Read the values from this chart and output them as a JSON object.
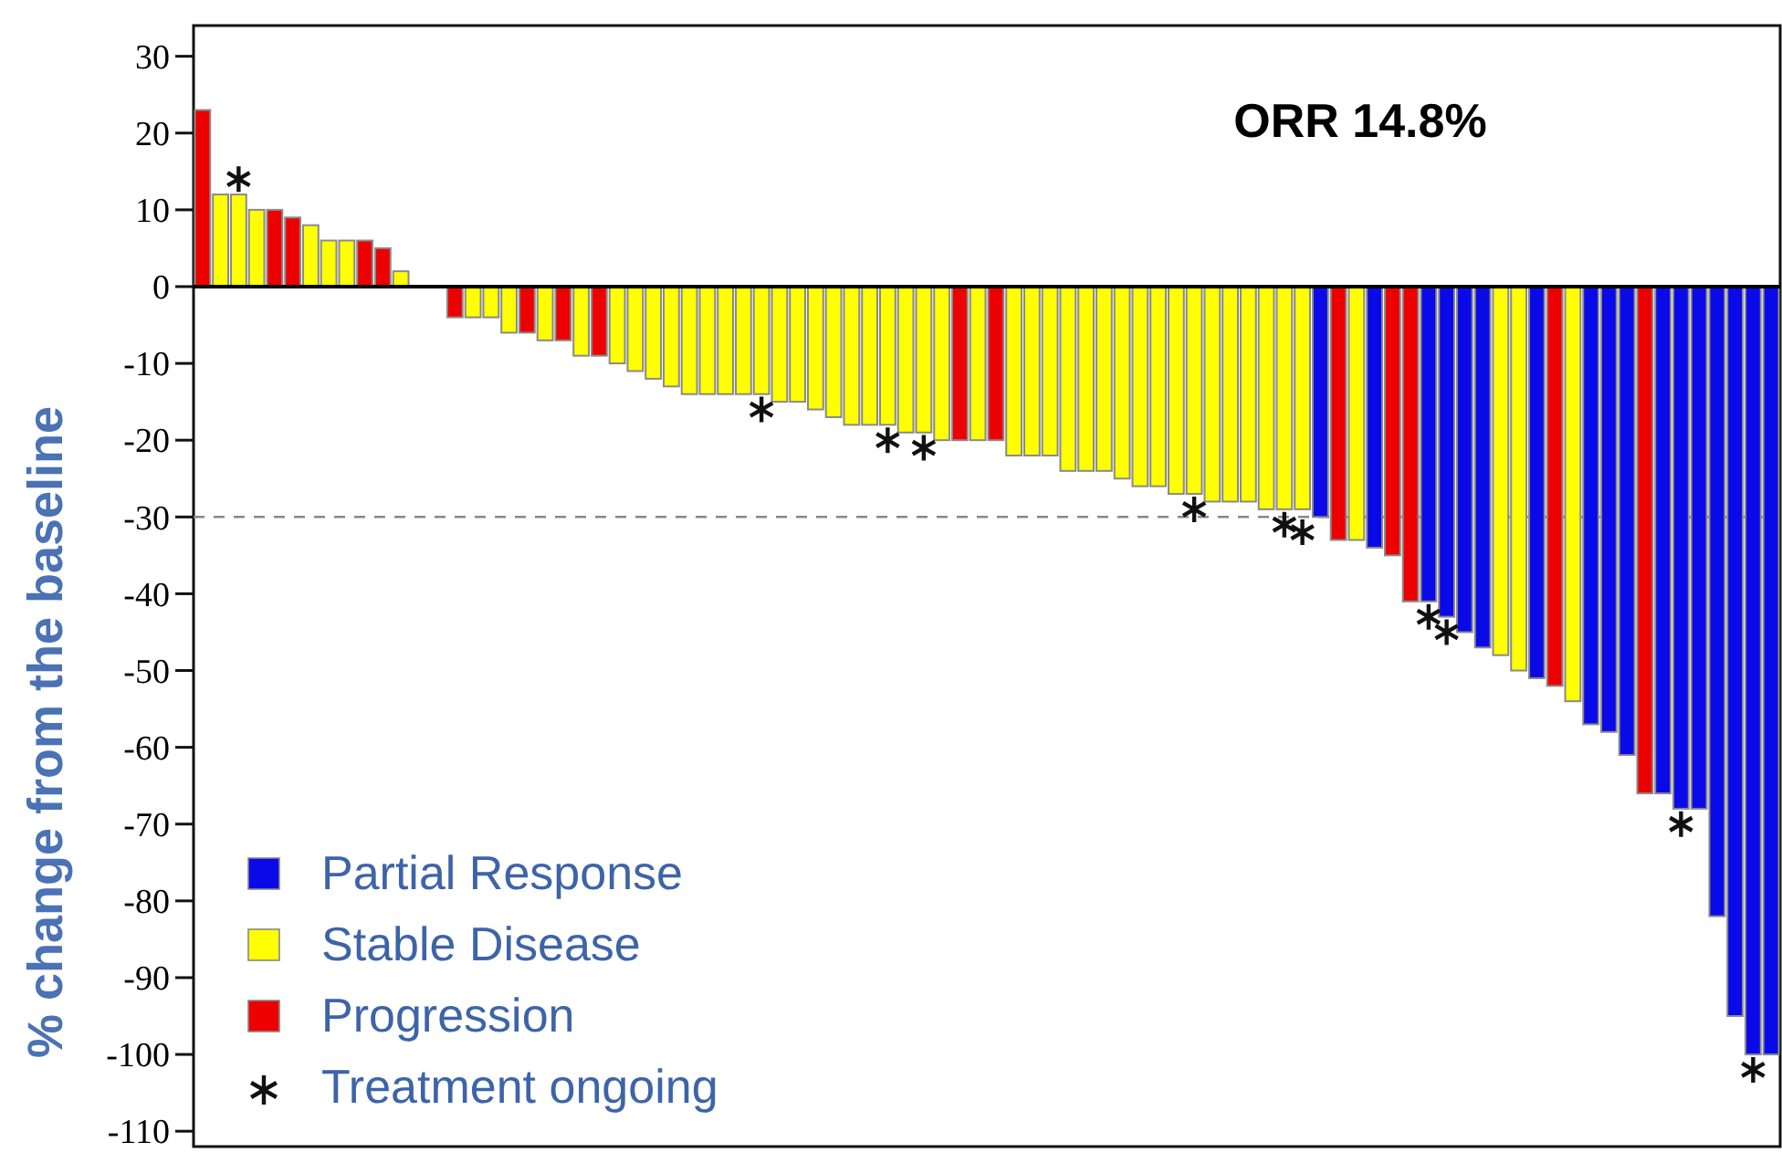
{
  "chart_data": {
    "type": "bar",
    "stacked": true,
    "ylabel": "% change from the baseline",
    "annotations": [
      "ORR 14.8%"
    ],
    "categories": [
      null,
      null,
      null,
      null,
      null,
      null,
      null,
      null,
      null,
      null,
      null,
      null,
      null,
      null,
      null,
      null,
      null,
      null,
      null,
      null,
      null,
      null,
      null,
      null,
      null,
      null,
      null,
      null,
      null,
      null,
      null,
      null,
      null,
      null,
      null,
      null,
      null,
      null,
      null,
      null,
      null,
      null,
      null,
      null,
      null,
      null,
      null,
      null,
      null,
      null,
      null,
      null,
      null,
      null,
      null,
      null,
      null,
      null,
      null,
      null,
      null,
      null,
      null,
      null,
      null,
      null,
      null,
      null,
      null,
      null,
      null,
      null,
      null,
      null,
      null,
      null,
      null,
      null,
      null,
      null,
      null,
      null,
      null,
      null,
      null,
      null,
      null,
      null
    ],
    "series": [
      {
        "name": "Partial Response",
        "color": "#0a0ae8",
        "values": [
          null,
          null,
          null,
          null,
          null,
          null,
          null,
          null,
          null,
          null,
          null,
          null,
          null,
          null,
          null,
          null,
          null,
          null,
          null,
          null,
          null,
          null,
          null,
          null,
          null,
          null,
          null,
          null,
          null,
          null,
          null,
          null,
          null,
          null,
          null,
          null,
          null,
          null,
          null,
          null,
          null,
          null,
          null,
          null,
          null,
          null,
          null,
          null,
          null,
          null,
          null,
          null,
          null,
          null,
          null,
          null,
          null,
          null,
          null,
          null,
          null,
          null,
          -30,
          null,
          null,
          -34,
          null,
          null,
          -41,
          -43,
          -45,
          -47,
          null,
          null,
          -51,
          null,
          null,
          -57,
          -58,
          -61,
          null,
          -66,
          -68,
          -68,
          -82,
          -95,
          -100,
          -100
        ]
      },
      {
        "name": "Stable Disease",
        "color": "#ffff00",
        "values": [
          null,
          12,
          12,
          10,
          null,
          null,
          8,
          6,
          6,
          null,
          null,
          2,
          null,
          null,
          null,
          -4,
          -4,
          -6,
          null,
          -7,
          null,
          -9,
          null,
          -10,
          -11,
          -12,
          -13,
          -14,
          -14,
          -14,
          -14,
          -14,
          -15,
          -15,
          -16,
          -17,
          -18,
          -18,
          -18,
          -19,
          -19,
          -20,
          null,
          -20,
          null,
          -22,
          -22,
          -22,
          -24,
          -24,
          -24,
          -25,
          -26,
          -26,
          -27,
          -27,
          -28,
          -28,
          -28,
          -29,
          -29,
          -29,
          null,
          null,
          -33,
          null,
          null,
          null,
          null,
          null,
          null,
          null,
          -48,
          -50,
          null,
          null,
          -54,
          null,
          null,
          null,
          null,
          null,
          null,
          null,
          null,
          null,
          null,
          null
        ]
      },
      {
        "name": "Progression",
        "color": "#ee0000",
        "values": [
          23,
          null,
          null,
          null,
          10,
          9,
          null,
          null,
          null,
          6,
          5,
          null,
          null,
          null,
          -4,
          null,
          null,
          null,
          -6,
          null,
          -7,
          null,
          -9,
          null,
          null,
          null,
          null,
          null,
          null,
          null,
          null,
          null,
          null,
          null,
          null,
          null,
          null,
          null,
          null,
          null,
          null,
          null,
          -20,
          null,
          -20,
          null,
          null,
          null,
          null,
          null,
          null,
          null,
          null,
          null,
          null,
          null,
          null,
          null,
          null,
          null,
          null,
          null,
          null,
          -33,
          null,
          null,
          -35,
          -41,
          null,
          null,
          null,
          null,
          null,
          null,
          null,
          -52,
          null,
          null,
          null,
          null,
          -66,
          null,
          null,
          null,
          null,
          null,
          null,
          null
        ]
      },
      {
        "name": "Treatment ongoing",
        "type": "scatter",
        "marker": "cross",
        "color": "#111111",
        "values": [
          null,
          null,
          14,
          null,
          null,
          null,
          null,
          null,
          null,
          null,
          null,
          null,
          null,
          null,
          null,
          null,
          null,
          null,
          null,
          null,
          null,
          null,
          null,
          null,
          null,
          null,
          null,
          null,
          null,
          null,
          null,
          -16,
          null,
          null,
          null,
          null,
          null,
          null,
          -20,
          null,
          -21,
          null,
          null,
          null,
          null,
          null,
          null,
          null,
          null,
          null,
          null,
          null,
          null,
          null,
          null,
          -29,
          null,
          null,
          null,
          null,
          -31,
          -32,
          null,
          null,
          null,
          null,
          null,
          null,
          -43,
          -45,
          null,
          null,
          null,
          null,
          null,
          null,
          null,
          null,
          null,
          null,
          null,
          null,
          -70,
          null,
          null,
          null,
          -102,
          null
        ]
      }
    ],
    "ylim": [
      -112,
      34
    ],
    "yticks": [
      30,
      20,
      10,
      0,
      -10,
      -20,
      -30,
      -40,
      -50,
      -60,
      -70,
      -80,
      -90,
      -100,
      -110
    ],
    "ref_lines": [
      {
        "axis": "y",
        "value": -30,
        "color": "#888888",
        "line_style": "dashed"
      }
    ],
    "legend": "bottom left"
  }
}
